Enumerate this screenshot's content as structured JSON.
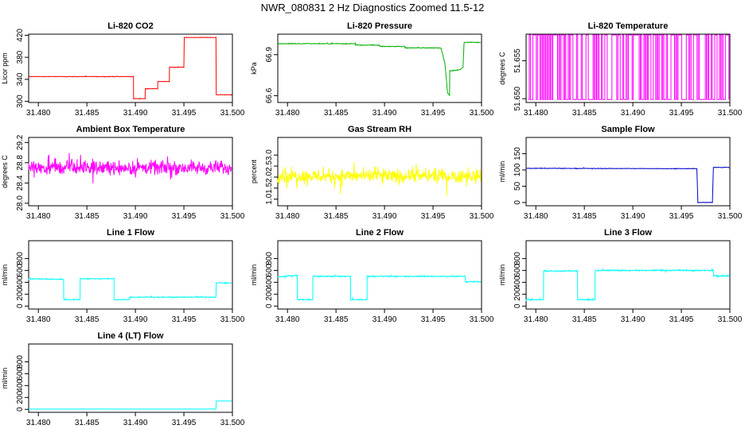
{
  "page": {
    "title": "NWR_080831  2 Hz Diagnostics Zoomed 11.5-12"
  },
  "chart_data": [
    {
      "type": "line",
      "title": "Li-820 CO2",
      "xlabel": "",
      "ylabel": "Licor ppm",
      "xlim": [
        31.479,
        31.5
      ],
      "ylim": [
        298,
        422
      ],
      "xticks": [
        31.48,
        31.485,
        31.49,
        31.495,
        31.5
      ],
      "xtick_labels": [
        "31.480",
        "31.485",
        "31.490",
        "31.495",
        "31.500"
      ],
      "yticks": [
        300,
        340,
        380,
        420
      ],
      "ytick_labels": [
        "300",
        "340",
        "380",
        "420"
      ],
      "color": "#ff0000",
      "noise": 0.6,
      "grid": false,
      "series": [
        {
          "x": [
            31.479,
            31.4898,
            31.4898,
            31.491,
            31.491,
            31.4923,
            31.4923,
            31.4935,
            31.4935,
            31.495,
            31.495,
            31.4983,
            31.4983,
            31.4999
          ],
          "y": [
            345,
            345,
            305,
            305,
            323,
            323,
            336,
            336,
            362,
            362,
            416,
            416,
            312,
            312
          ]
        }
      ]
    },
    {
      "type": "line",
      "title": "Li-820 Pressure",
      "xlabel": "",
      "ylabel": "kPa",
      "xlim": [
        31.479,
        31.5
      ],
      "ylim": [
        66.55,
        67.05
      ],
      "xticks": [
        31.48,
        31.485,
        31.49,
        31.495,
        31.5
      ],
      "xtick_labels": [
        "31.480",
        "31.485",
        "31.490",
        "31.495",
        "31.500"
      ],
      "yticks": [
        66.6,
        66.9
      ],
      "ytick_labels": [
        "66.6",
        "66.9"
      ],
      "color": "#00b000",
      "noise": 0.004,
      "grid": false,
      "series": [
        {
          "x": [
            31.479,
            31.487,
            31.487,
            31.4895,
            31.4895,
            31.4921,
            31.4921,
            31.4958,
            31.4962,
            31.4965,
            31.4967,
            31.4967,
            31.4978,
            31.4981,
            31.4982,
            31.4999
          ],
          "y": [
            66.98,
            66.98,
            66.97,
            66.97,
            66.96,
            66.96,
            66.95,
            66.95,
            66.85,
            66.62,
            66.6,
            66.78,
            66.79,
            66.81,
            66.99,
            66.99
          ]
        }
      ]
    },
    {
      "type": "line",
      "title": "Li-820 Temperature",
      "xlabel": "",
      "ylabel": "degrees C",
      "xlim": [
        31.479,
        31.5
      ],
      "ylim": [
        51.6495,
        51.6585
      ],
      "xticks": [
        31.48,
        31.485,
        31.49,
        31.495,
        31.5
      ],
      "xtick_labels": [
        "31.480",
        "31.485",
        "31.490",
        "31.495",
        "31.500"
      ],
      "yticks": [
        51.65,
        51.655
      ],
      "ytick_labels": [
        "51.650",
        "51.655"
      ],
      "color": "#ff00ff",
      "noise": 0,
      "grid": false,
      "digital": {
        "levels": [
          51.6499,
          51.6584
        ],
        "n": 170
      }
    },
    {
      "type": "line",
      "title": "Ambient Box Temperature",
      "xlabel": "",
      "ylabel": "degrees C",
      "xlim": [
        31.479,
        31.5
      ],
      "ylim": [
        27.95,
        29.3
      ],
      "xticks": [
        31.48,
        31.485,
        31.49,
        31.495,
        31.5
      ],
      "xtick_labels": [
        "31.480",
        "31.485",
        "31.490",
        "31.495",
        "31.500"
      ],
      "yticks": [
        28.0,
        28.4,
        28.8,
        29.2
      ],
      "ytick_labels": [
        "28.0",
        "28.4",
        "28.8",
        "29.2"
      ],
      "color": "#ff00ff",
      "noise": 0.2,
      "grid": false,
      "series": [
        {
          "x": [
            31.479,
            31.4999
          ],
          "y": [
            28.7,
            28.7
          ]
        }
      ]
    },
    {
      "type": "line",
      "title": "Gas Stream RH",
      "xlabel": "",
      "ylabel": "percent",
      "xlim": [
        31.479,
        31.5
      ],
      "ylim": [
        0.7,
        3.8
      ],
      "xticks": [
        31.48,
        31.485,
        31.49,
        31.495,
        31.5
      ],
      "xtick_labels": [
        "31.480",
        "31.485",
        "31.490",
        "31.495",
        "31.500"
      ],
      "yticks": [
        1.0,
        1.5,
        2.0,
        2.5,
        3.0
      ],
      "ytick_labels": [
        "1.0",
        "1.5",
        "2.0",
        "2.5",
        "3.0"
      ],
      "color": "#ffff00",
      "noise": 0.45,
      "grid": false,
      "series": [
        {
          "x": [
            31.479,
            31.4999
          ],
          "y": [
            2.05,
            2.05
          ]
        }
      ]
    },
    {
      "type": "line",
      "title": "Sample Flow",
      "xlabel": "",
      "ylabel": "ml/min",
      "xlim": [
        31.479,
        31.5
      ],
      "ylim": [
        -10,
        200
      ],
      "xticks": [
        31.48,
        31.485,
        31.49,
        31.495,
        31.5
      ],
      "xtick_labels": [
        "31.480",
        "31.485",
        "31.490",
        "31.495",
        "31.500"
      ],
      "yticks": [
        0,
        50,
        100,
        150
      ],
      "ytick_labels": [
        "0",
        "50",
        "100",
        "150"
      ],
      "color": "#0000cc",
      "noise": 1.2,
      "grid": false,
      "series": [
        {
          "x": [
            31.479,
            31.4966,
            31.4967,
            31.4982,
            31.4983,
            31.4999
          ],
          "y": [
            105,
            104,
            0,
            0,
            108,
            108
          ]
        }
      ]
    },
    {
      "type": "line",
      "title": "Line 1 Flow",
      "xlabel": "",
      "ylabel": "ml/min",
      "xlim": [
        31.479,
        31.5
      ],
      "ylim": [
        -50,
        1100
      ],
      "xticks": [
        31.48,
        31.485,
        31.49,
        31.495,
        31.5
      ],
      "xtick_labels": [
        "31.480",
        "31.485",
        "31.490",
        "31.495",
        "31.500"
      ],
      "yticks": [
        0,
        200,
        400,
        600,
        800
      ],
      "ytick_labels": [
        "0",
        "200",
        "400",
        "600",
        "800"
      ],
      "color": "#00ffff",
      "noise": 12,
      "grid": false,
      "series": [
        {
          "x": [
            31.479,
            31.4826,
            31.4826,
            31.4843,
            31.4843,
            31.4878,
            31.4878,
            31.4894,
            31.4894,
            31.4983,
            31.4983,
            31.4999
          ],
          "y": [
            460,
            450,
            110,
            110,
            460,
            460,
            110,
            110,
            150,
            150,
            390,
            390
          ]
        }
      ]
    },
    {
      "type": "line",
      "title": "Line 2 Flow",
      "xlabel": "",
      "ylabel": "ml/min",
      "xlim": [
        31.479,
        31.5
      ],
      "ylim": [
        -50,
        1100
      ],
      "xticks": [
        31.48,
        31.485,
        31.49,
        31.495,
        31.5
      ],
      "xtick_labels": [
        "31.480",
        "31.485",
        "31.490",
        "31.495",
        "31.500"
      ],
      "yticks": [
        0,
        200,
        400,
        600,
        800
      ],
      "ytick_labels": [
        "0",
        "200",
        "400",
        "600",
        "800"
      ],
      "color": "#00ffff",
      "noise": 14,
      "grid": false,
      "series": [
        {
          "x": [
            31.479,
            31.481,
            31.481,
            31.4826,
            31.4826,
            31.4865,
            31.4865,
            31.4882,
            31.4882,
            31.4983,
            31.4983,
            31.4999
          ],
          "y": [
            490,
            520,
            110,
            110,
            500,
            500,
            110,
            110,
            500,
            500,
            410,
            410
          ]
        }
      ]
    },
    {
      "type": "line",
      "title": "Line 3 Flow",
      "xlabel": "",
      "ylabel": "ml/min",
      "xlim": [
        31.479,
        31.5
      ],
      "ylim": [
        -50,
        1100
      ],
      "xticks": [
        31.48,
        31.485,
        31.49,
        31.495,
        31.5
      ],
      "xtick_labels": [
        "31.480",
        "31.485",
        "31.490",
        "31.495",
        "31.500"
      ],
      "yticks": [
        0,
        200,
        400,
        600,
        800
      ],
      "ytick_labels": [
        "0",
        "200",
        "400",
        "600",
        "800"
      ],
      "color": "#00ffff",
      "noise": 16,
      "grid": false,
      "series": [
        {
          "x": [
            31.479,
            31.4808,
            31.4808,
            31.4843,
            31.4843,
            31.4861,
            31.4861,
            31.4983,
            31.4983,
            31.4999
          ],
          "y": [
            110,
            110,
            590,
            590,
            110,
            110,
            600,
            600,
            510,
            510
          ]
        }
      ]
    },
    {
      "type": "line",
      "title": "Line 4 (LT) Flow",
      "xlabel": "",
      "ylabel": "ml/min",
      "xlim": [
        31.479,
        31.5
      ],
      "ylim": [
        -50,
        1100
      ],
      "xticks": [
        31.48,
        31.485,
        31.49,
        31.495,
        31.5
      ],
      "xtick_labels": [
        "31.480",
        "31.485",
        "31.490",
        "31.495",
        "31.500"
      ],
      "yticks": [
        0,
        200,
        400,
        600,
        800
      ],
      "ytick_labels": [
        "0",
        "200",
        "400",
        "600",
        "800"
      ],
      "color": "#00ffff",
      "noise": 2,
      "grid": false,
      "series": [
        {
          "x": [
            31.479,
            31.4983,
            31.4983,
            31.4999
          ],
          "y": [
            5,
            5,
            140,
            140
          ]
        }
      ]
    }
  ]
}
